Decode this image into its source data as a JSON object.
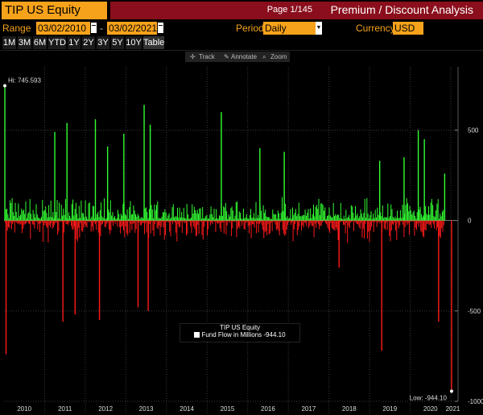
{
  "header": {
    "security": "TIP US Equity",
    "page_info": "Page 1/145",
    "function_title": "Premium / Discount Analysis"
  },
  "controls": {
    "range_label": "Range",
    "start_date": "03/02/2010",
    "dash": "-",
    "end_date": "03/02/2021",
    "period_label": "Period",
    "period_value": "Daily",
    "currency_label": "Currency",
    "currency_value": "USD"
  },
  "timeframes": [
    "1M",
    "3M",
    "6M",
    "YTD",
    "1Y",
    "2Y",
    "3Y",
    "5Y",
    "10Y",
    "Table"
  ],
  "chart_toolbar": {
    "track": "Track",
    "annotate": "Annotate",
    "zoom": "Zoom"
  },
  "colors": {
    "positive": "#33ff33",
    "negative": "#ff1a1a",
    "accent": "#f7a21b",
    "title_bar": "#8a0e1c"
  },
  "chart_data": {
    "type": "bar",
    "title": "TIP US Equity",
    "series": [
      {
        "name": "Fund Flow in Millions",
        "last_value": "-944.10"
      }
    ],
    "legend_text": "Fund Flow in Millions -944.10",
    "hi_label": "Hi: 745.593",
    "low_label": "Low: -944.10",
    "hi_value": 745.593,
    "low_value": -944.1,
    "ylim": [
      -1000,
      850
    ],
    "y_ticks": [
      500,
      0,
      -500,
      -1000
    ],
    "y_tick_labels": [
      "500",
      "0",
      "-500",
      "-1000"
    ],
    "x_tick_labels": [
      "2010",
      "2011",
      "2012",
      "2013",
      "2014",
      "2015",
      "2016",
      "2017",
      "2018",
      "2019",
      "2020",
      "2021"
    ],
    "notable_flows": [
      {
        "year": 2010.02,
        "value": 745.6
      },
      {
        "year": 2010.05,
        "value": -740
      },
      {
        "year": 2011.25,
        "value": 490
      },
      {
        "year": 2011.45,
        "value": -560
      },
      {
        "year": 2011.55,
        "value": 540
      },
      {
        "year": 2011.75,
        "value": -520
      },
      {
        "year": 2012.25,
        "value": 560
      },
      {
        "year": 2012.35,
        "value": -550
      },
      {
        "year": 2012.55,
        "value": 410
      },
      {
        "year": 2012.95,
        "value": 480
      },
      {
        "year": 2013.3,
        "value": -480
      },
      {
        "year": 2013.45,
        "value": 640
      },
      {
        "year": 2013.6,
        "value": 530
      },
      {
        "year": 2013.55,
        "value": -500
      },
      {
        "year": 2015.35,
        "value": 600
      },
      {
        "year": 2016.3,
        "value": 400
      },
      {
        "year": 2016.9,
        "value": 380
      },
      {
        "year": 2018.25,
        "value": -260
      },
      {
        "year": 2019.3,
        "value": -720
      },
      {
        "year": 2019.25,
        "value": 330
      },
      {
        "year": 2019.85,
        "value": 350
      },
      {
        "year": 2020.2,
        "value": 500
      },
      {
        "year": 2020.35,
        "value": 450
      },
      {
        "year": 2020.7,
        "value": -560
      },
      {
        "year": 2020.85,
        "value": 260
      },
      {
        "year": 2021.02,
        "value": -944.1
      }
    ]
  }
}
